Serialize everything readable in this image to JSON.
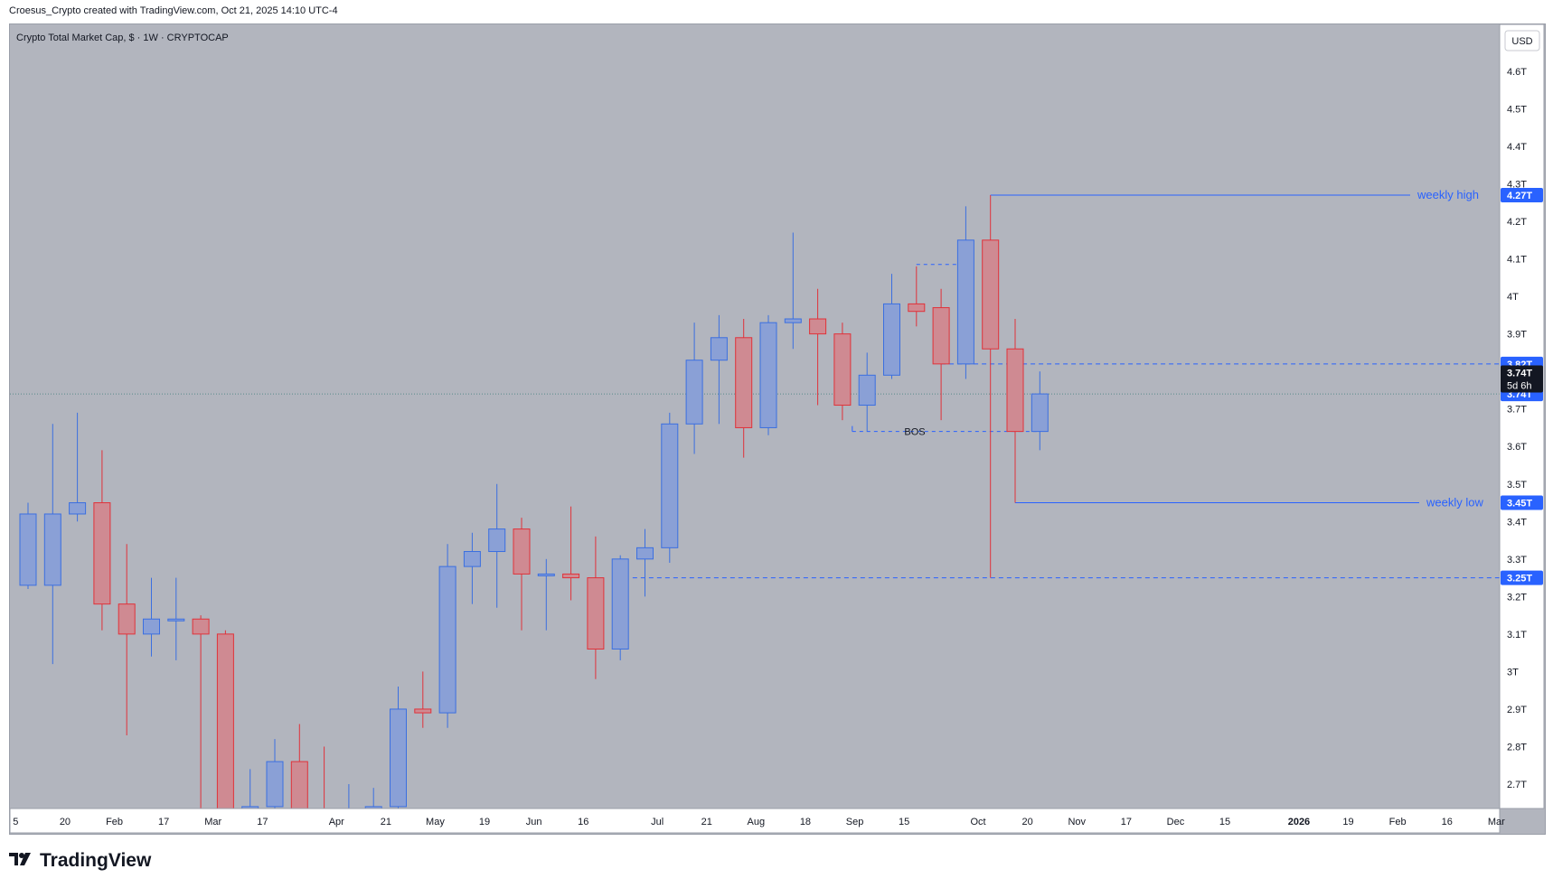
{
  "header": {
    "credit": "Croesus_Crypto created with TradingView.com, Oct 21, 2025 14:10 UTC-4"
  },
  "footer": {
    "brand": "TradingView",
    "logo_icon": "tradingview-logo-icon"
  },
  "colors": {
    "up_body": "#8aa0d6",
    "up_border": "#3b6fe0",
    "down_body": "#cf8a92",
    "down_border": "#e0323a",
    "background": "#b2b5be",
    "axis_bg": "#ffffff",
    "accent": "#2962ff",
    "price_tag": "#131722"
  },
  "chart_data": {
    "type": "candlestick",
    "title": "Crypto Total Market Cap, $ · 1W · CRYPTOCAP",
    "currency_button": "USD",
    "y_unit": "T",
    "ylim": [
      2.635,
      4.725
    ],
    "y_ticks": [
      {
        "v": 2.7,
        "label": "2.7T"
      },
      {
        "v": 2.8,
        "label": "2.8T"
      },
      {
        "v": 2.9,
        "label": "2.9T"
      },
      {
        "v": 3.0,
        "label": "3T"
      },
      {
        "v": 3.1,
        "label": "3.1T"
      },
      {
        "v": 3.2,
        "label": "3.2T"
      },
      {
        "v": 3.3,
        "label": "3.3T"
      },
      {
        "v": 3.4,
        "label": "3.4T"
      },
      {
        "v": 3.5,
        "label": "3.5T"
      },
      {
        "v": 3.6,
        "label": "3.6T"
      },
      {
        "v": 3.7,
        "label": "3.7T"
      },
      {
        "v": 3.9,
        "label": "3.9T"
      },
      {
        "v": 4.0,
        "label": "4T"
      },
      {
        "v": 4.1,
        "label": "4.1T"
      },
      {
        "v": 4.2,
        "label": "4.2T"
      },
      {
        "v": 4.3,
        "label": "4.3T"
      },
      {
        "v": 4.4,
        "label": "4.4T"
      },
      {
        "v": 4.5,
        "label": "4.5T"
      },
      {
        "v": 4.6,
        "label": "4.6T"
      }
    ],
    "x_ticks": [
      {
        "i": -0.5,
        "label": "5",
        "bold": false
      },
      {
        "i": 1.5,
        "label": "20",
        "bold": false
      },
      {
        "i": 3.5,
        "label": "Feb",
        "bold": false
      },
      {
        "i": 5.5,
        "label": "17",
        "bold": false
      },
      {
        "i": 7.5,
        "label": "Mar",
        "bold": false
      },
      {
        "i": 9.5,
        "label": "17",
        "bold": false
      },
      {
        "i": 12.5,
        "label": "Apr",
        "bold": false
      },
      {
        "i": 14.5,
        "label": "21",
        "bold": false
      },
      {
        "i": 16.5,
        "label": "May",
        "bold": false
      },
      {
        "i": 18.5,
        "label": "19",
        "bold": false
      },
      {
        "i": 20.5,
        "label": "Jun",
        "bold": false
      },
      {
        "i": 22.5,
        "label": "16",
        "bold": false
      },
      {
        "i": 25.5,
        "label": "Jul",
        "bold": false
      },
      {
        "i": 27.5,
        "label": "21",
        "bold": false
      },
      {
        "i": 29.5,
        "label": "Aug",
        "bold": false
      },
      {
        "i": 31.5,
        "label": "18",
        "bold": false
      },
      {
        "i": 33.5,
        "label": "Sep",
        "bold": false
      },
      {
        "i": 35.5,
        "label": "15",
        "bold": false
      },
      {
        "i": 38.5,
        "label": "Oct",
        "bold": false
      },
      {
        "i": 40.5,
        "label": "20",
        "bold": false
      },
      {
        "i": 42.5,
        "label": "Nov",
        "bold": false
      },
      {
        "i": 44.5,
        "label": "17",
        "bold": false
      },
      {
        "i": 46.5,
        "label": "Dec",
        "bold": false
      },
      {
        "i": 48.5,
        "label": "15",
        "bold": false
      },
      {
        "i": 51.5,
        "label": "2026",
        "bold": true
      },
      {
        "i": 53.5,
        "label": "19",
        "bold": false
      },
      {
        "i": 55.5,
        "label": "Feb",
        "bold": false
      },
      {
        "i": 57.5,
        "label": "16",
        "bold": false
      },
      {
        "i": 59.5,
        "label": "Mar",
        "bold": false
      }
    ],
    "candles": [
      {
        "o": 3.23,
        "h": 3.45,
        "l": 3.22,
        "c": 3.42
      },
      {
        "o": 3.23,
        "h": 3.66,
        "l": 3.02,
        "c": 3.42
      },
      {
        "o": 3.42,
        "h": 3.69,
        "l": 3.4,
        "c": 3.45
      },
      {
        "o": 3.45,
        "h": 3.59,
        "l": 3.11,
        "c": 3.18
      },
      {
        "o": 3.18,
        "h": 3.34,
        "l": 2.83,
        "c": 3.1
      },
      {
        "o": 3.1,
        "h": 3.25,
        "l": 3.04,
        "c": 3.14
      },
      {
        "o": 3.14,
        "h": 3.25,
        "l": 3.03,
        "c": 3.14
      },
      {
        "o": 3.14,
        "h": 3.15,
        "l": 2.6,
        "c": 3.1
      },
      {
        "o": 3.1,
        "h": 3.11,
        "l": 2.55,
        "c": 2.6
      },
      {
        "o": 2.6,
        "h": 2.74,
        "l": 2.55,
        "c": 2.64
      },
      {
        "o": 2.64,
        "h": 2.82,
        "l": 2.6,
        "c": 2.76
      },
      {
        "o": 2.76,
        "h": 2.86,
        "l": 2.55,
        "c": 2.62
      },
      {
        "o": 2.62,
        "h": 2.8,
        "l": 2.55,
        "c": 2.6
      },
      {
        "o": 2.6,
        "h": 2.7,
        "l": 2.58,
        "c": 2.62
      },
      {
        "o": 2.63,
        "h": 2.69,
        "l": 2.6,
        "c": 2.64
      },
      {
        "o": 2.64,
        "h": 2.96,
        "l": 2.6,
        "c": 2.9
      },
      {
        "o": 2.9,
        "h": 3.0,
        "l": 2.85,
        "c": 2.89
      },
      {
        "o": 2.89,
        "h": 3.34,
        "l": 2.85,
        "c": 3.28
      },
      {
        "o": 3.28,
        "h": 3.37,
        "l": 3.18,
        "c": 3.32
      },
      {
        "o": 3.32,
        "h": 3.5,
        "l": 3.17,
        "c": 3.38
      },
      {
        "o": 3.38,
        "h": 3.41,
        "l": 3.11,
        "c": 3.26
      },
      {
        "o": 3.26,
        "h": 3.3,
        "l": 3.11,
        "c": 3.26
      },
      {
        "o": 3.26,
        "h": 3.44,
        "l": 3.19,
        "c": 3.25
      },
      {
        "o": 3.25,
        "h": 3.36,
        "l": 2.98,
        "c": 3.06
      },
      {
        "o": 3.06,
        "h": 3.31,
        "l": 3.03,
        "c": 3.3
      },
      {
        "o": 3.3,
        "h": 3.38,
        "l": 3.2,
        "c": 3.33
      },
      {
        "o": 3.33,
        "h": 3.69,
        "l": 3.29,
        "c": 3.66
      },
      {
        "o": 3.66,
        "h": 3.93,
        "l": 3.58,
        "c": 3.83
      },
      {
        "o": 3.83,
        "h": 3.95,
        "l": 3.66,
        "c": 3.89
      },
      {
        "o": 3.89,
        "h": 3.94,
        "l": 3.57,
        "c": 3.65
      },
      {
        "o": 3.65,
        "h": 3.95,
        "l": 3.63,
        "c": 3.93
      },
      {
        "o": 3.93,
        "h": 4.17,
        "l": 3.86,
        "c": 3.94
      },
      {
        "o": 3.94,
        "h": 4.02,
        "l": 3.71,
        "c": 3.9
      },
      {
        "o": 3.9,
        "h": 3.93,
        "l": 3.67,
        "c": 3.71
      },
      {
        "o": 3.71,
        "h": 3.85,
        "l": 3.64,
        "c": 3.79
      },
      {
        "o": 3.79,
        "h": 4.06,
        "l": 3.78,
        "c": 3.98
      },
      {
        "o": 3.98,
        "h": 4.08,
        "l": 3.92,
        "c": 3.96
      },
      {
        "o": 3.97,
        "h": 4.02,
        "l": 3.67,
        "c": 3.82
      },
      {
        "o": 3.82,
        "h": 4.24,
        "l": 3.78,
        "c": 4.15
      },
      {
        "o": 4.15,
        "h": 4.27,
        "l": 3.25,
        "c": 3.86
      },
      {
        "o": 3.86,
        "h": 3.94,
        "l": 3.45,
        "c": 3.64
      },
      {
        "o": 3.64,
        "h": 3.8,
        "l": 3.59,
        "c": 3.74
      }
    ],
    "annotations": {
      "weekly_high": {
        "label": "weekly high",
        "value": 4.27,
        "tag": "4.27T",
        "from_index": 39
      },
      "weekly_low": {
        "label": "weekly low",
        "value": 3.45,
        "tag": "3.45T",
        "from_index": 40
      },
      "level_3_82": {
        "value": 3.82,
        "tag": "3.82T",
        "from_index": 37
      },
      "level_3_25": {
        "value": 3.25,
        "tag": "3.25T",
        "from_index": 24.5
      },
      "bos": {
        "label": "BOS",
        "value": 3.64,
        "from_index": 33.4,
        "to_index": 41
      },
      "bos_top": {
        "value": 4.085,
        "from_index": 36,
        "to_index": 38.2
      },
      "current_price": {
        "value": 3.74,
        "tag": "3.74T"
      },
      "countdown": {
        "price": "3.74T",
        "time": "5d 6h",
        "value": 3.78
      }
    }
  }
}
